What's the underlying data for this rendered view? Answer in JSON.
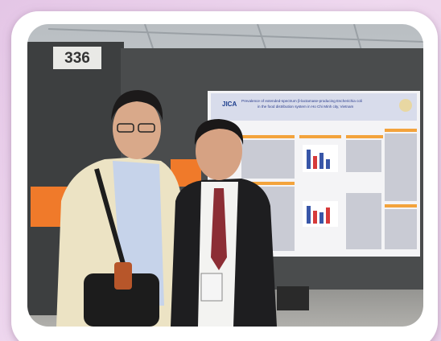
{
  "photo": {
    "booth_number": "336",
    "poster": {
      "logo": "JICA",
      "title_line_1": "Prevalence of extended-spectrum β-lactamase-producing Escherichia coli",
      "title_line_2": "in the food distribution system in Ho Chi Minh city, Vietnam"
    }
  }
}
